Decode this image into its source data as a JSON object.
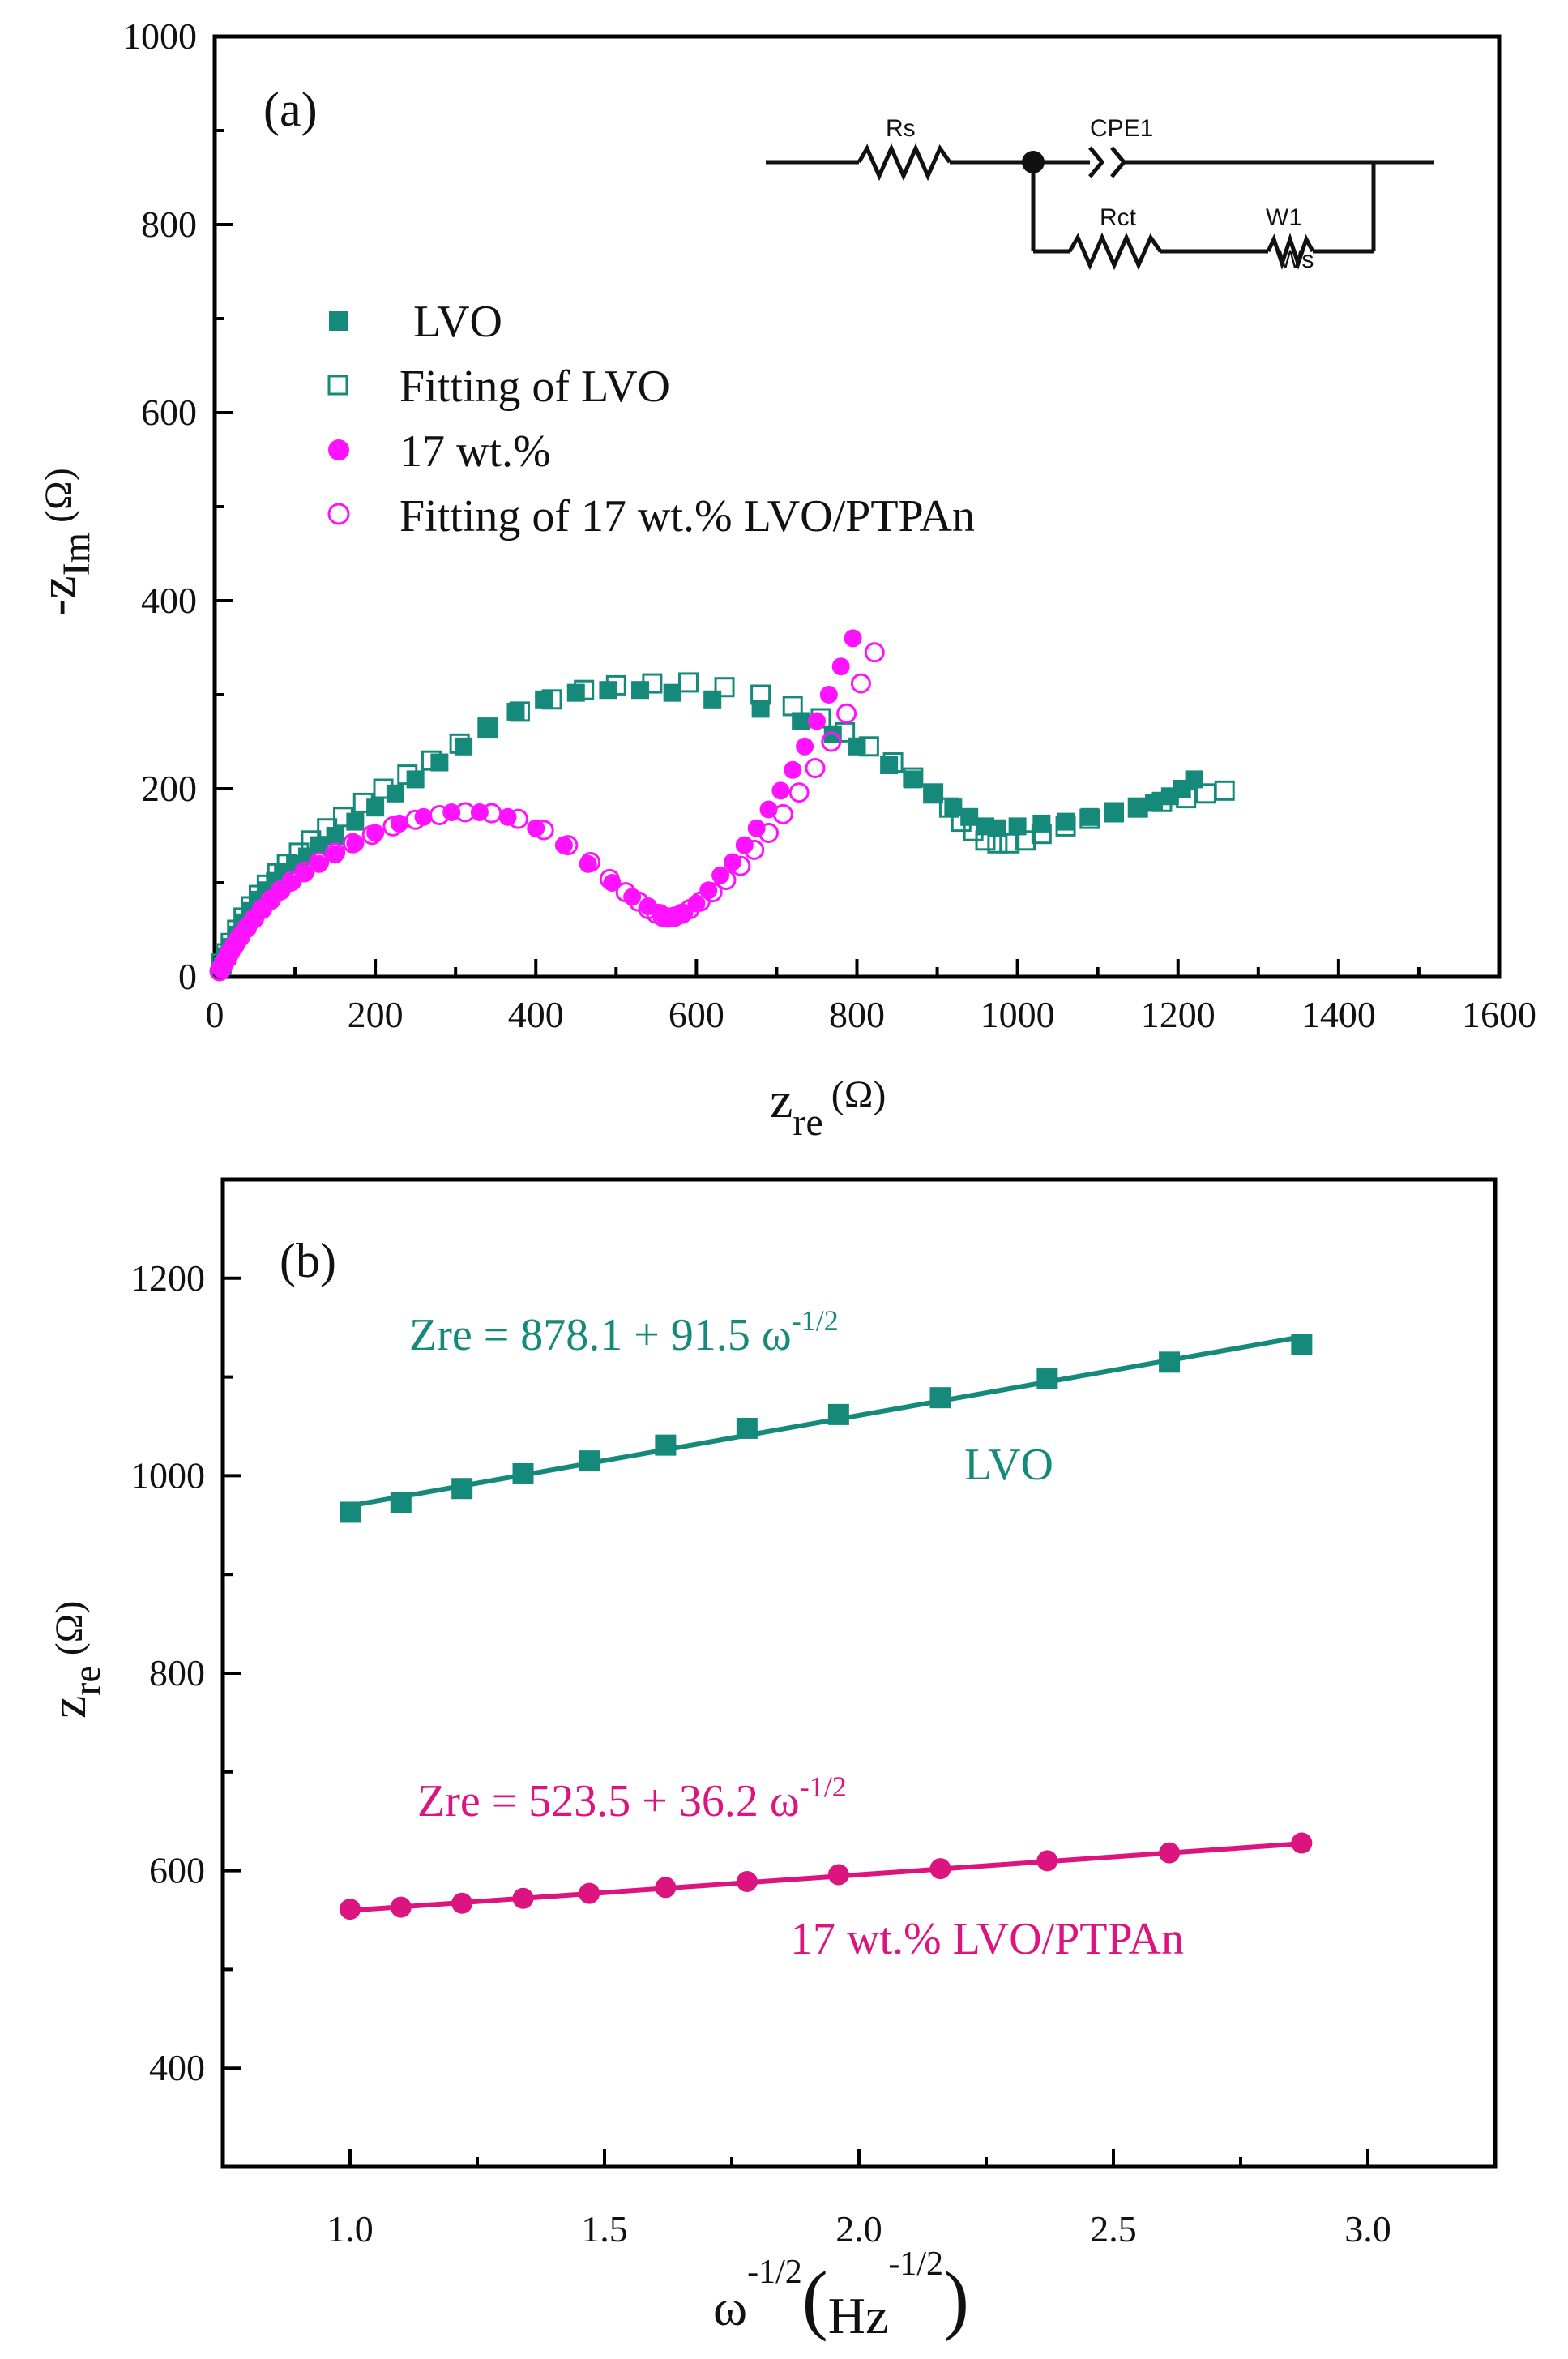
{
  "colors": {
    "teal": "#168a7a",
    "magenta": "#ff12ff",
    "pink": "#dc1480",
    "axis": "#000000"
  },
  "chart_data": [
    {
      "id": "a",
      "type": "scatter",
      "panel_label": "(a)",
      "xlabel": "z",
      "xlabel_sub": "re",
      "xlabel_unit": "(Ω)",
      "ylabel": "-z",
      "ylabel_sub": "Im",
      "ylabel_unit": "(Ω)",
      "xlim": [
        0,
        1600
      ],
      "ylim": [
        0,
        1000
      ],
      "xticks": [
        "0",
        "200",
        "400",
        "600",
        "800",
        "1000",
        "1200",
        "1400",
        "1600"
      ],
      "yticks": [
        "0",
        "200",
        "400",
        "600",
        "800",
        "1000"
      ],
      "legend": [
        "LVO",
        "Fitting of LVO",
        "17 wt.%",
        "Fitting of 17 wt.% LVO/PTPAn"
      ],
      "circuit_labels": {
        "rs": "Rs",
        "cpe": "CPE1",
        "rct": "Rct",
        "w": "W1",
        "ws": "Ws"
      },
      "series": [
        {
          "name": "LVO",
          "marker": "square-filled",
          "color": "#168a7a",
          "x": [
            10,
            15,
            20,
            28,
            36,
            45,
            55,
            65,
            75,
            85,
            100,
            115,
            130,
            150,
            175,
            200,
            225,
            250,
            280,
            310,
            340,
            375,
            410,
            450,
            490,
            530,
            570,
            620,
            680,
            730,
            770,
            800,
            840,
            870,
            895,
            920,
            940,
            960,
            975,
            1000,
            1030,
            1060,
            1090,
            1120,
            1150,
            1170,
            1190,
            1205,
            1220
          ],
          "y": [
            12,
            22,
            32,
            45,
            58,
            70,
            82,
            92,
            102,
            110,
            120,
            128,
            140,
            150,
            165,
            180,
            195,
            210,
            228,
            245,
            265,
            282,
            295,
            302,
            305,
            305,
            302,
            295,
            285,
            272,
            258,
            245,
            225,
            210,
            195,
            180,
            170,
            160,
            158,
            160,
            163,
            165,
            170,
            175,
            180,
            185,
            192,
            200,
            210
          ]
        },
        {
          "name": "Fitting of LVO",
          "marker": "square-open",
          "color": "#168a7a",
          "x": [
            8,
            14,
            20,
            28,
            36,
            45,
            55,
            65,
            78,
            90,
            105,
            120,
            140,
            160,
            185,
            210,
            240,
            270,
            305,
            340,
            380,
            420,
            460,
            500,
            545,
            590,
            635,
            680,
            720,
            755,
            785,
            815,
            845,
            870,
            895,
            915,
            930,
            945,
            960,
            975,
            990,
            1010,
            1030,
            1060,
            1090,
            1120,
            1150,
            1180,
            1210,
            1235,
            1258
          ],
          "y": [
            14,
            25,
            36,
            50,
            63,
            75,
            87,
            98,
            110,
            120,
            132,
            145,
            158,
            170,
            185,
            200,
            215,
            230,
            248,
            265,
            282,
            295,
            305,
            310,
            312,
            313,
            308,
            300,
            288,
            275,
            260,
            245,
            228,
            212,
            195,
            180,
            165,
            155,
            145,
            142,
            142,
            145,
            152,
            160,
            168,
            175,
            180,
            186,
            190,
            195,
            198
          ]
        },
        {
          "name": "17 wt.%",
          "marker": "circle-filled",
          "color": "#ff12ff",
          "x": [
            8,
            12,
            17,
            23,
            30,
            38,
            47,
            57,
            68,
            80,
            95,
            112,
            130,
            150,
            175,
            200,
            230,
            260,
            295,
            330,
            365,
            400,
            435,
            465,
            495,
            520,
            540,
            555,
            565,
            575,
            585,
            600,
            615,
            630,
            645,
            660,
            675,
            690,
            705,
            720,
            735,
            750,
            765,
            780,
            795
          ],
          "y": [
            8,
            14,
            22,
            30,
            40,
            50,
            60,
            70,
            80,
            90,
            100,
            110,
            120,
            130,
            142,
            153,
            163,
            170,
            175,
            175,
            170,
            158,
            140,
            120,
            100,
            85,
            75,
            68,
            64,
            65,
            68,
            78,
            92,
            108,
            122,
            140,
            158,
            178,
            198,
            220,
            245,
            272,
            300,
            330,
            360
          ]
        },
        {
          "name": "Fitting of 17 wt.% LVO/PTPAn",
          "marker": "circle-open",
          "color": "#ff12ff",
          "x": [
            6,
            10,
            14,
            19,
            25,
            32,
            40,
            49,
            59,
            70,
            82,
            96,
            112,
            130,
            150,
            172,
            196,
            222,
            250,
            280,
            312,
            345,
            378,
            410,
            440,
            468,
            492,
            512,
            528,
            540,
            550,
            558,
            565,
            573,
            582,
            592,
            605,
            620,
            637,
            655,
            672,
            690,
            708,
            728,
            748,
            768,
            787,
            805,
            822
          ],
          "y": [
            6,
            12,
            18,
            26,
            34,
            43,
            52,
            62,
            72,
            82,
            92,
            102,
            112,
            122,
            132,
            142,
            151,
            160,
            167,
            172,
            175,
            174,
            168,
            156,
            140,
            122,
            104,
            90,
            80,
            72,
            67,
            64,
            63,
            64,
            67,
            72,
            80,
            90,
            103,
            118,
            135,
            153,
            173,
            196,
            222,
            250,
            280,
            312,
            345
          ]
        }
      ]
    },
    {
      "id": "b",
      "type": "scatter",
      "panel_label": "(b)",
      "xlabel": "ω",
      "xlabel_sup": "-1/2",
      "xlabel_unit": "Hz",
      "xlabel_unit_sup": "-1/2",
      "ylabel": "z",
      "ylabel_sub": "re",
      "ylabel_unit": "(Ω)",
      "xlim": [
        0.75,
        3.25
      ],
      "ylim": [
        300,
        1300
      ],
      "xticks": [
        "1.0",
        "1.5",
        "2.0",
        "2.5",
        "3.0"
      ],
      "yticks": [
        "400",
        "600",
        "800",
        "1000",
        "1200"
      ],
      "series": [
        {
          "name": "LVO",
          "label": "LVO",
          "marker": "square-filled",
          "color": "#168a7a",
          "equation": "Zre = 878.1 + 91.5 ω",
          "equation_sup": "-1/2",
          "intercept": 878.1,
          "slope": 91.5,
          "x": [
            1.0,
            1.1,
            1.22,
            1.34,
            1.47,
            1.62,
            1.78,
            1.96,
            2.16,
            2.37,
            2.61,
            2.87
          ],
          "y": [
            963,
            973,
            987,
            1002,
            1015,
            1031,
            1048,
            1062,
            1079,
            1098,
            1115,
            1133
          ]
        },
        {
          "name": "17 wt.% LVO/PTPAn",
          "label": "17 wt.% LVO/PTPAn",
          "marker": "circle-filled",
          "color": "#dc1480",
          "equation": "Zre = 523.5 + 36.2 ω",
          "equation_sup": "-1/2",
          "intercept": 523.5,
          "slope": 36.2,
          "x": [
            1.0,
            1.1,
            1.22,
            1.34,
            1.47,
            1.62,
            1.78,
            1.96,
            2.16,
            2.37,
            2.61,
            2.87
          ],
          "y": [
            561,
            563,
            567,
            572,
            577,
            583,
            589,
            596,
            602,
            610,
            618,
            628
          ]
        }
      ]
    }
  ]
}
